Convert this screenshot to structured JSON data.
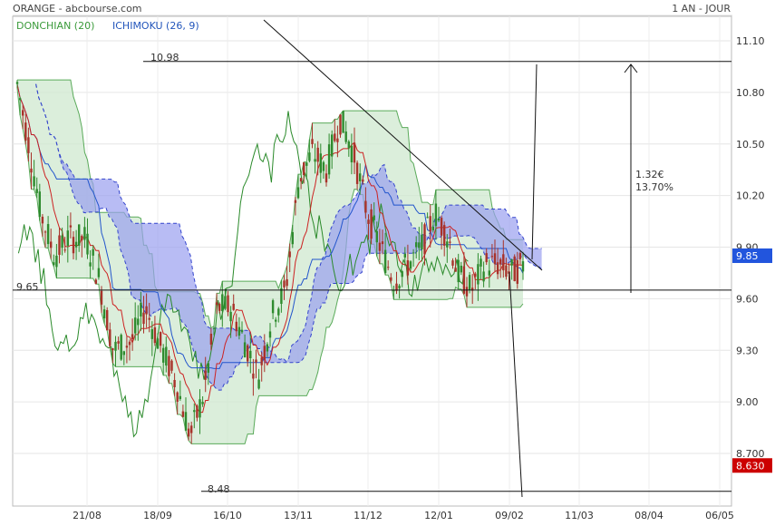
{
  "header": {
    "source": "ORANGE - abcbourse.com",
    "period": "1 AN - JOUR"
  },
  "legend": {
    "donchian": {
      "label": "DONCHIAN (20)",
      "color": "#3a9a3a"
    },
    "ichimoku": {
      "label": "ICHIMOKU (26, 9)",
      "color": "#2255bb"
    }
  },
  "chart_data": {
    "type": "line",
    "title": "ORANGE - abcbourse.com",
    "y_ticks": [
      "11.10",
      "10.80",
      "10.50",
      "10.20",
      "9.90",
      "9.60",
      "9.30",
      "9.00",
      "8.700"
    ],
    "x_ticks": [
      "21/08",
      "18/09",
      "16/10",
      "13/11",
      "11/12",
      "12/01",
      "09/02",
      "11/03",
      "08/04",
      "06/05"
    ],
    "ylim": [
      8.45,
      11.2
    ],
    "price_badges": [
      {
        "text": "9.85",
        "value": 9.85,
        "color": "#2255dd"
      },
      {
        "text": "8.630",
        "value": 8.63,
        "color": "#cc0000"
      }
    ],
    "levels": [
      {
        "label": "10.98",
        "value": 10.98
      },
      {
        "label": "9.65",
        "value": 9.65
      },
      {
        "label": "8.48",
        "value": 8.48
      }
    ],
    "annotation": {
      "line1": "1.32€",
      "line2": "13.70%"
    }
  }
}
